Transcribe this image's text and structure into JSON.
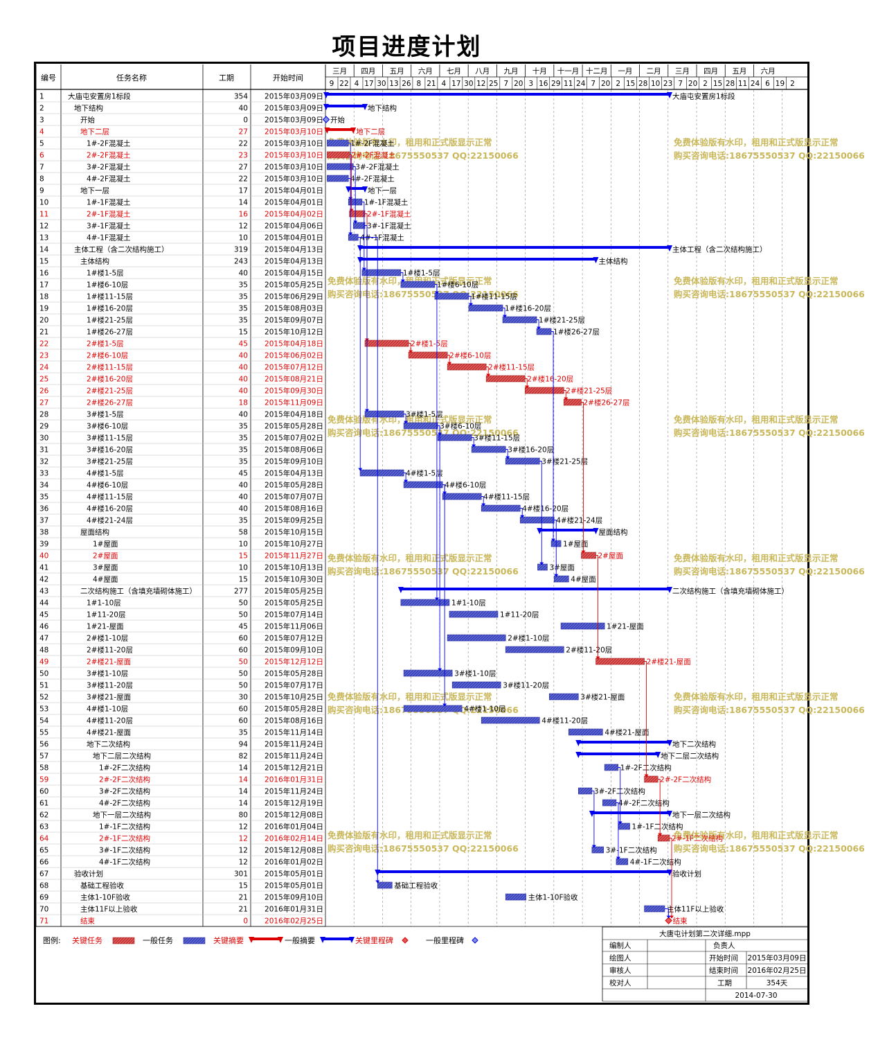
{
  "title": "项目进度计划",
  "colors": {
    "critical": "#dd0000",
    "normal": "#0000ee",
    "critical_bar": "#e35a5a",
    "normal_bar": "#5b66d6",
    "watermark": "#c9b75a"
  },
  "table_headers": {
    "id": "编号",
    "name": "任务名称",
    "dur": "工期",
    "start": "开始时间"
  },
  "timescale": {
    "months": [
      "三月",
      "四月",
      "五月",
      "六月",
      "七月",
      "八月",
      "九月",
      "十月",
      "十一月",
      "十二月",
      "一月",
      "二月",
      "三月",
      "四月",
      "五月",
      "六月"
    ],
    "days": [
      "9",
      "22",
      "4",
      "17",
      "30",
      "13",
      "26",
      "8",
      "21",
      "4",
      "17",
      "30",
      "12",
      "25",
      "7",
      "20",
      "3",
      "16",
      "29",
      "11",
      "24",
      "7",
      "20",
      "2",
      "15",
      "28",
      "10",
      "23",
      "7",
      "20",
      "2",
      "15",
      "28",
      "11",
      "24",
      "6",
      "19",
      "2"
    ]
  },
  "watermark": {
    "line1": "免费体验版有水印，租用和正式版显示正常",
    "line2": "购买咨询电话:18675550537 QQ:22150066"
  },
  "legend": {
    "title": "图例:",
    "critical_task": "关键任务",
    "normal_task": "一般任务",
    "critical_summary": "关键摘要",
    "normal_summary": "一般摘要",
    "critical_milestone": "关键里程碑",
    "normal_milestone": "一般里程碑"
  },
  "footer": {
    "file": "大唐屯计划第二次详细.mpp",
    "preparer": "编制人",
    "owner": "负责人",
    "drafter": "绘图人",
    "start_label": "开始时间",
    "start_value": "2015年03月09日",
    "reviewer": "审核人",
    "end_label": "结束时间",
    "end_value": "2016年02月25日",
    "checker": "校对人",
    "dur_label": "工期",
    "dur_value": "354天",
    "date": "2014-07-30"
  },
  "chart_data": {
    "type": "gantt",
    "project_start": "2015-03-09",
    "tasks": [
      {
        "id": "1",
        "name": "大庙屯安置房1标段",
        "dur": "354",
        "start": "2015年03月09日",
        "crit": false,
        "sum": true,
        "lvl": 0
      },
      {
        "id": "2",
        "name": "地下结构",
        "dur": "40",
        "start": "2015年03月09日",
        "crit": false,
        "sum": true,
        "lvl": 1
      },
      {
        "id": "3",
        "name": "开始",
        "dur": "0",
        "start": "2015年03月09日",
        "crit": false,
        "ms": true,
        "lvl": 2
      },
      {
        "id": "4",
        "name": "地下二层",
        "dur": "27",
        "start": "2015年03月10日",
        "crit": true,
        "sum": true,
        "lvl": 2
      },
      {
        "id": "5",
        "name": "1#-2F混凝土",
        "dur": "22",
        "start": "2015年03月10日",
        "crit": false,
        "lvl": 3
      },
      {
        "id": "6",
        "name": "2#-2F混凝土",
        "dur": "23",
        "start": "2015年03月10日",
        "crit": true,
        "lvl": 3
      },
      {
        "id": "7",
        "name": "3#-2F混凝土",
        "dur": "27",
        "start": "2015年03月10日",
        "crit": false,
        "lvl": 3
      },
      {
        "id": "8",
        "name": "4#-2F混凝土",
        "dur": "22",
        "start": "2015年03月10日",
        "crit": false,
        "lvl": 3
      },
      {
        "id": "9",
        "name": "地下一层",
        "dur": "17",
        "start": "2015年04月01日",
        "crit": false,
        "sum": true,
        "lvl": 2
      },
      {
        "id": "10",
        "name": "1#-1F混凝土",
        "dur": "14",
        "start": "2015年04月01日",
        "crit": false,
        "lvl": 3
      },
      {
        "id": "11",
        "name": "2#-1F混凝土",
        "dur": "16",
        "start": "2015年04月02日",
        "crit": true,
        "lvl": 3
      },
      {
        "id": "12",
        "name": "3#-1F混凝土",
        "dur": "12",
        "start": "2015年04月06日",
        "crit": false,
        "lvl": 3
      },
      {
        "id": "13",
        "name": "4#-1F混凝土",
        "dur": "10",
        "start": "2015年04月01日",
        "crit": false,
        "lvl": 3
      },
      {
        "id": "14",
        "name": "主体工程（含二次结构施工）",
        "dur": "319",
        "start": "2015年04月13日",
        "crit": false,
        "sum": true,
        "lvl": 1
      },
      {
        "id": "15",
        "name": "主体结构",
        "dur": "243",
        "start": "2015年04月13日",
        "crit": false,
        "sum": true,
        "lvl": 2
      },
      {
        "id": "16",
        "name": "1#楼1-5层",
        "dur": "40",
        "start": "2015年04月15日",
        "crit": false,
        "lvl": 3
      },
      {
        "id": "17",
        "name": "1#楼6-10层",
        "dur": "35",
        "start": "2015年05月25日",
        "crit": false,
        "lvl": 3
      },
      {
        "id": "18",
        "name": "1#楼11-15层",
        "dur": "35",
        "start": "2015年06月29日",
        "crit": false,
        "lvl": 3
      },
      {
        "id": "19",
        "name": "1#楼16-20层",
        "dur": "35",
        "start": "2015年08月03日",
        "crit": false,
        "lvl": 3
      },
      {
        "id": "20",
        "name": "1#楼21-25层",
        "dur": "35",
        "start": "2015年09月07日",
        "crit": false,
        "lvl": 3
      },
      {
        "id": "21",
        "name": "1#楼26-27层",
        "dur": "15",
        "start": "2015年10月12日",
        "crit": false,
        "lvl": 3
      },
      {
        "id": "22",
        "name": "2#楼1-5层",
        "dur": "45",
        "start": "2015年04月18日",
        "crit": true,
        "lvl": 3
      },
      {
        "id": "23",
        "name": "2#楼6-10层",
        "dur": "40",
        "start": "2015年06月02日",
        "crit": true,
        "lvl": 3
      },
      {
        "id": "24",
        "name": "2#楼11-15层",
        "dur": "40",
        "start": "2015年07月12日",
        "crit": true,
        "lvl": 3
      },
      {
        "id": "25",
        "name": "2#楼16-20层",
        "dur": "40",
        "start": "2015年08月21日",
        "crit": true,
        "lvl": 3
      },
      {
        "id": "26",
        "name": "2#楼21-25层",
        "dur": "40",
        "start": "2015年09月30日",
        "crit": true,
        "lvl": 3
      },
      {
        "id": "27",
        "name": "2#楼26-27层",
        "dur": "18",
        "start": "2015年11月09日",
        "crit": true,
        "lvl": 3
      },
      {
        "id": "28",
        "name": "3#楼1-5层",
        "dur": "40",
        "start": "2015年04月18日",
        "crit": false,
        "lvl": 3
      },
      {
        "id": "29",
        "name": "3#楼6-10层",
        "dur": "35",
        "start": "2015年05月28日",
        "crit": false,
        "lvl": 3
      },
      {
        "id": "30",
        "name": "3#楼11-15层",
        "dur": "35",
        "start": "2015年07月02日",
        "crit": false,
        "lvl": 3
      },
      {
        "id": "31",
        "name": "3#楼16-20层",
        "dur": "35",
        "start": "2015年08月06日",
        "crit": false,
        "lvl": 3
      },
      {
        "id": "32",
        "name": "3#楼21-25层",
        "dur": "35",
        "start": "2015年09月10日",
        "crit": false,
        "lvl": 3
      },
      {
        "id": "33",
        "name": "4#楼1-5层",
        "dur": "45",
        "start": "2015年04月13日",
        "crit": false,
        "lvl": 3
      },
      {
        "id": "34",
        "name": "4#楼6-10层",
        "dur": "40",
        "start": "2015年05月28日",
        "crit": false,
        "lvl": 3
      },
      {
        "id": "35",
        "name": "4#楼11-15层",
        "dur": "40",
        "start": "2015年07月07日",
        "crit": false,
        "lvl": 3
      },
      {
        "id": "36",
        "name": "4#楼16-20层",
        "dur": "40",
        "start": "2015年08月16日",
        "crit": false,
        "lvl": 3
      },
      {
        "id": "37",
        "name": "4#楼21-24层",
        "dur": "35",
        "start": "2015年09月25日",
        "crit": false,
        "lvl": 3
      },
      {
        "id": "38",
        "name": "屋面结构",
        "dur": "58",
        "start": "2015年10月15日",
        "crit": false,
        "sum": true,
        "lvl": 2
      },
      {
        "id": "39",
        "name": "1#屋面",
        "dur": "10",
        "start": "2015年10月27日",
        "crit": false,
        "lvl": 4
      },
      {
        "id": "40",
        "name": "2#屋面",
        "dur": "15",
        "start": "2015年11月27日",
        "crit": true,
        "lvl": 4
      },
      {
        "id": "41",
        "name": "3#屋面",
        "dur": "10",
        "start": "2015年10月13日",
        "crit": false,
        "lvl": 4
      },
      {
        "id": "42",
        "name": "4#屋面",
        "dur": "15",
        "start": "2015年10月30日",
        "crit": false,
        "lvl": 4
      },
      {
        "id": "43",
        "name": "二次结构施工（含填充墙砌体施工）",
        "dur": "277",
        "start": "2015年05月25日",
        "crit": false,
        "sum": true,
        "lvl": 2
      },
      {
        "id": "44",
        "name": "1#1-10层",
        "dur": "50",
        "start": "2015年05月25日",
        "crit": false,
        "lvl": 3
      },
      {
        "id": "45",
        "name": "1#11-20层",
        "dur": "50",
        "start": "2015年07月14日",
        "crit": false,
        "lvl": 3
      },
      {
        "id": "46",
        "name": "1#21-屋面",
        "dur": "45",
        "start": "2015年11月06日",
        "crit": false,
        "lvl": 3
      },
      {
        "id": "47",
        "name": "2#楼1-10层",
        "dur": "60",
        "start": "2015年07月12日",
        "crit": false,
        "lvl": 3
      },
      {
        "id": "48",
        "name": "2#楼11-20层",
        "dur": "60",
        "start": "2015年09月10日",
        "crit": false,
        "lvl": 3
      },
      {
        "id": "49",
        "name": "2#楼21-屋面",
        "dur": "50",
        "start": "2015年12月12日",
        "crit": true,
        "lvl": 3
      },
      {
        "id": "50",
        "name": "3#楼1-10层",
        "dur": "50",
        "start": "2015年05月28日",
        "crit": false,
        "lvl": 3
      },
      {
        "id": "51",
        "name": "3#楼11-20层",
        "dur": "50",
        "start": "2015年07月17日",
        "crit": false,
        "lvl": 3
      },
      {
        "id": "52",
        "name": "3#楼21-屋面",
        "dur": "30",
        "start": "2015年10月25日",
        "crit": false,
        "lvl": 3
      },
      {
        "id": "53",
        "name": "4#楼1-10层",
        "dur": "60",
        "start": "2015年05月28日",
        "crit": false,
        "lvl": 3
      },
      {
        "id": "54",
        "name": "4#楼11-20层",
        "dur": "60",
        "start": "2015年08月16日",
        "crit": false,
        "lvl": 3
      },
      {
        "id": "55",
        "name": "4#楼21-屋面",
        "dur": "35",
        "start": "2015年11月14日",
        "crit": false,
        "lvl": 3
      },
      {
        "id": "56",
        "name": "地下二次结构",
        "dur": "94",
        "start": "2015年11月24日",
        "crit": false,
        "sum": true,
        "lvl": 3
      },
      {
        "id": "57",
        "name": "地下二层二次结构",
        "dur": "82",
        "start": "2015年11月24日",
        "crit": false,
        "sum": true,
        "lvl": 4
      },
      {
        "id": "58",
        "name": "1#-2F二次结构",
        "dur": "14",
        "start": "2015年12月21日",
        "crit": false,
        "lvl": 5
      },
      {
        "id": "59",
        "name": "2#-2F二次结构",
        "dur": "14",
        "start": "2016年01月31日",
        "crit": true,
        "lvl": 5
      },
      {
        "id": "60",
        "name": "3#-2F二次结构",
        "dur": "14",
        "start": "2015年11月24日",
        "crit": false,
        "lvl": 5
      },
      {
        "id": "61",
        "name": "4#-2F二次结构",
        "dur": "14",
        "start": "2015年12月19日",
        "crit": false,
        "lvl": 5
      },
      {
        "id": "62",
        "name": "地下一层二次结构",
        "dur": "80",
        "start": "2015年12月08日",
        "crit": false,
        "sum": true,
        "lvl": 4
      },
      {
        "id": "63",
        "name": "1#-1F二次结构",
        "dur": "12",
        "start": "2016年01月04日",
        "crit": false,
        "lvl": 5
      },
      {
        "id": "64",
        "name": "2#-1F二次结构",
        "dur": "12",
        "start": "2016年02月14日",
        "crit": true,
        "lvl": 5
      },
      {
        "id": "65",
        "name": "3#-1F二次结构",
        "dur": "12",
        "start": "2015年12月08日",
        "crit": false,
        "lvl": 5
      },
      {
        "id": "66",
        "name": "4#-1F二次结构",
        "dur": "12",
        "start": "2016年01月02日",
        "crit": false,
        "lvl": 5
      },
      {
        "id": "67",
        "name": "验收计划",
        "dur": "301",
        "start": "2015年05月01日",
        "crit": false,
        "sum": true,
        "lvl": 1
      },
      {
        "id": "68",
        "name": "基础工程验收",
        "dur": "15",
        "start": "2015年05月01日",
        "crit": false,
        "lvl": 2
      },
      {
        "id": "69",
        "name": "主体1-10F验收",
        "dur": "21",
        "start": "2015年09月10日",
        "crit": false,
        "lvl": 2
      },
      {
        "id": "70",
        "name": "主体11F以上验收",
        "dur": "21",
        "start": "2016年01月31日",
        "crit": false,
        "lvl": 2
      },
      {
        "id": "71",
        "name": "结束",
        "dur": "0",
        "start": "2016年02月25日",
        "crit": true,
        "ms": true,
        "lvl": 2
      }
    ],
    "bar_labels": {
      "1": "大庙屯安置房1标段",
      "2": "地下结构",
      "3": "开始",
      "4": "地下二层",
      "5": "1#-2F混凝土",
      "6": "2#-2F混凝土",
      "7": "3#-2F混凝土",
      "8": "4#-2F混凝土",
      "9": "地下一层",
      "10": "1#-1F混凝土",
      "11": "2#-1F混凝土",
      "12": "3#-1F混凝土",
      "13": "4#-1F混凝土",
      "14": "主体工程（含二次结构施工）",
      "15": "主体结构",
      "16": "1#楼1-5层",
      "17": "1#楼6-10层",
      "18": "1#楼11-15层",
      "19": "1#楼16-20层",
      "20": "1#楼21-25层",
      "21": "1#楼26-27层",
      "22": "2#楼1-5层",
      "23": "2#楼6-10层",
      "24": "2#楼11-15层",
      "25": "2#楼16-20层",
      "26": "2#楼21-25层",
      "27": "2#楼26-27层",
      "28": "3#楼1-5层",
      "29": "3#楼6-10层",
      "30": "3#楼11-15层",
      "31": "3#楼16-20层",
      "32": "3#楼21-25层",
      "33": "4#楼1-5层",
      "34": "4#楼6-10层",
      "35": "4#楼11-15层",
      "36": "4#楼16-20层",
      "37": "4#楼21-24层",
      "38": "屋面结构",
      "39": "1#屋面",
      "40": "2#屋面",
      "41": "3#屋面",
      "42": "4#屋面",
      "43": "二次结构施工（含填充墙砌体施工）",
      "44": "1#1-10层",
      "45": "1#11-20层",
      "46": "1#21-屋面",
      "47": "2#楼1-10层",
      "48": "2#楼11-20层",
      "49": "2#楼21-屋面",
      "50": "3#楼1-10层",
      "51": "3#楼11-20层",
      "52": "3#楼21-屋面",
      "53": "4#楼1-10层",
      "54": "4#楼11-20层",
      "55": "4#楼21-屋面",
      "56": "地下二次结构",
      "57": "地下二层二次结构",
      "58": "1#-2F二次结构",
      "59": "2#-2F二次结构",
      "60": "3#-2F二次结构",
      "61": "4#-2F二次结构",
      "62": "地下一层二次结构",
      "63": "1#-1F二次结构",
      "64": "2#-1F二次结构",
      "65": "3#-1F二次结构",
      "66": "4#-1F二次结构",
      "67": "验收计划",
      "68": "基础工程验收",
      "69": "主体1-10F验收",
      "70": "主体11F以上验收",
      "71": "结束"
    }
  }
}
